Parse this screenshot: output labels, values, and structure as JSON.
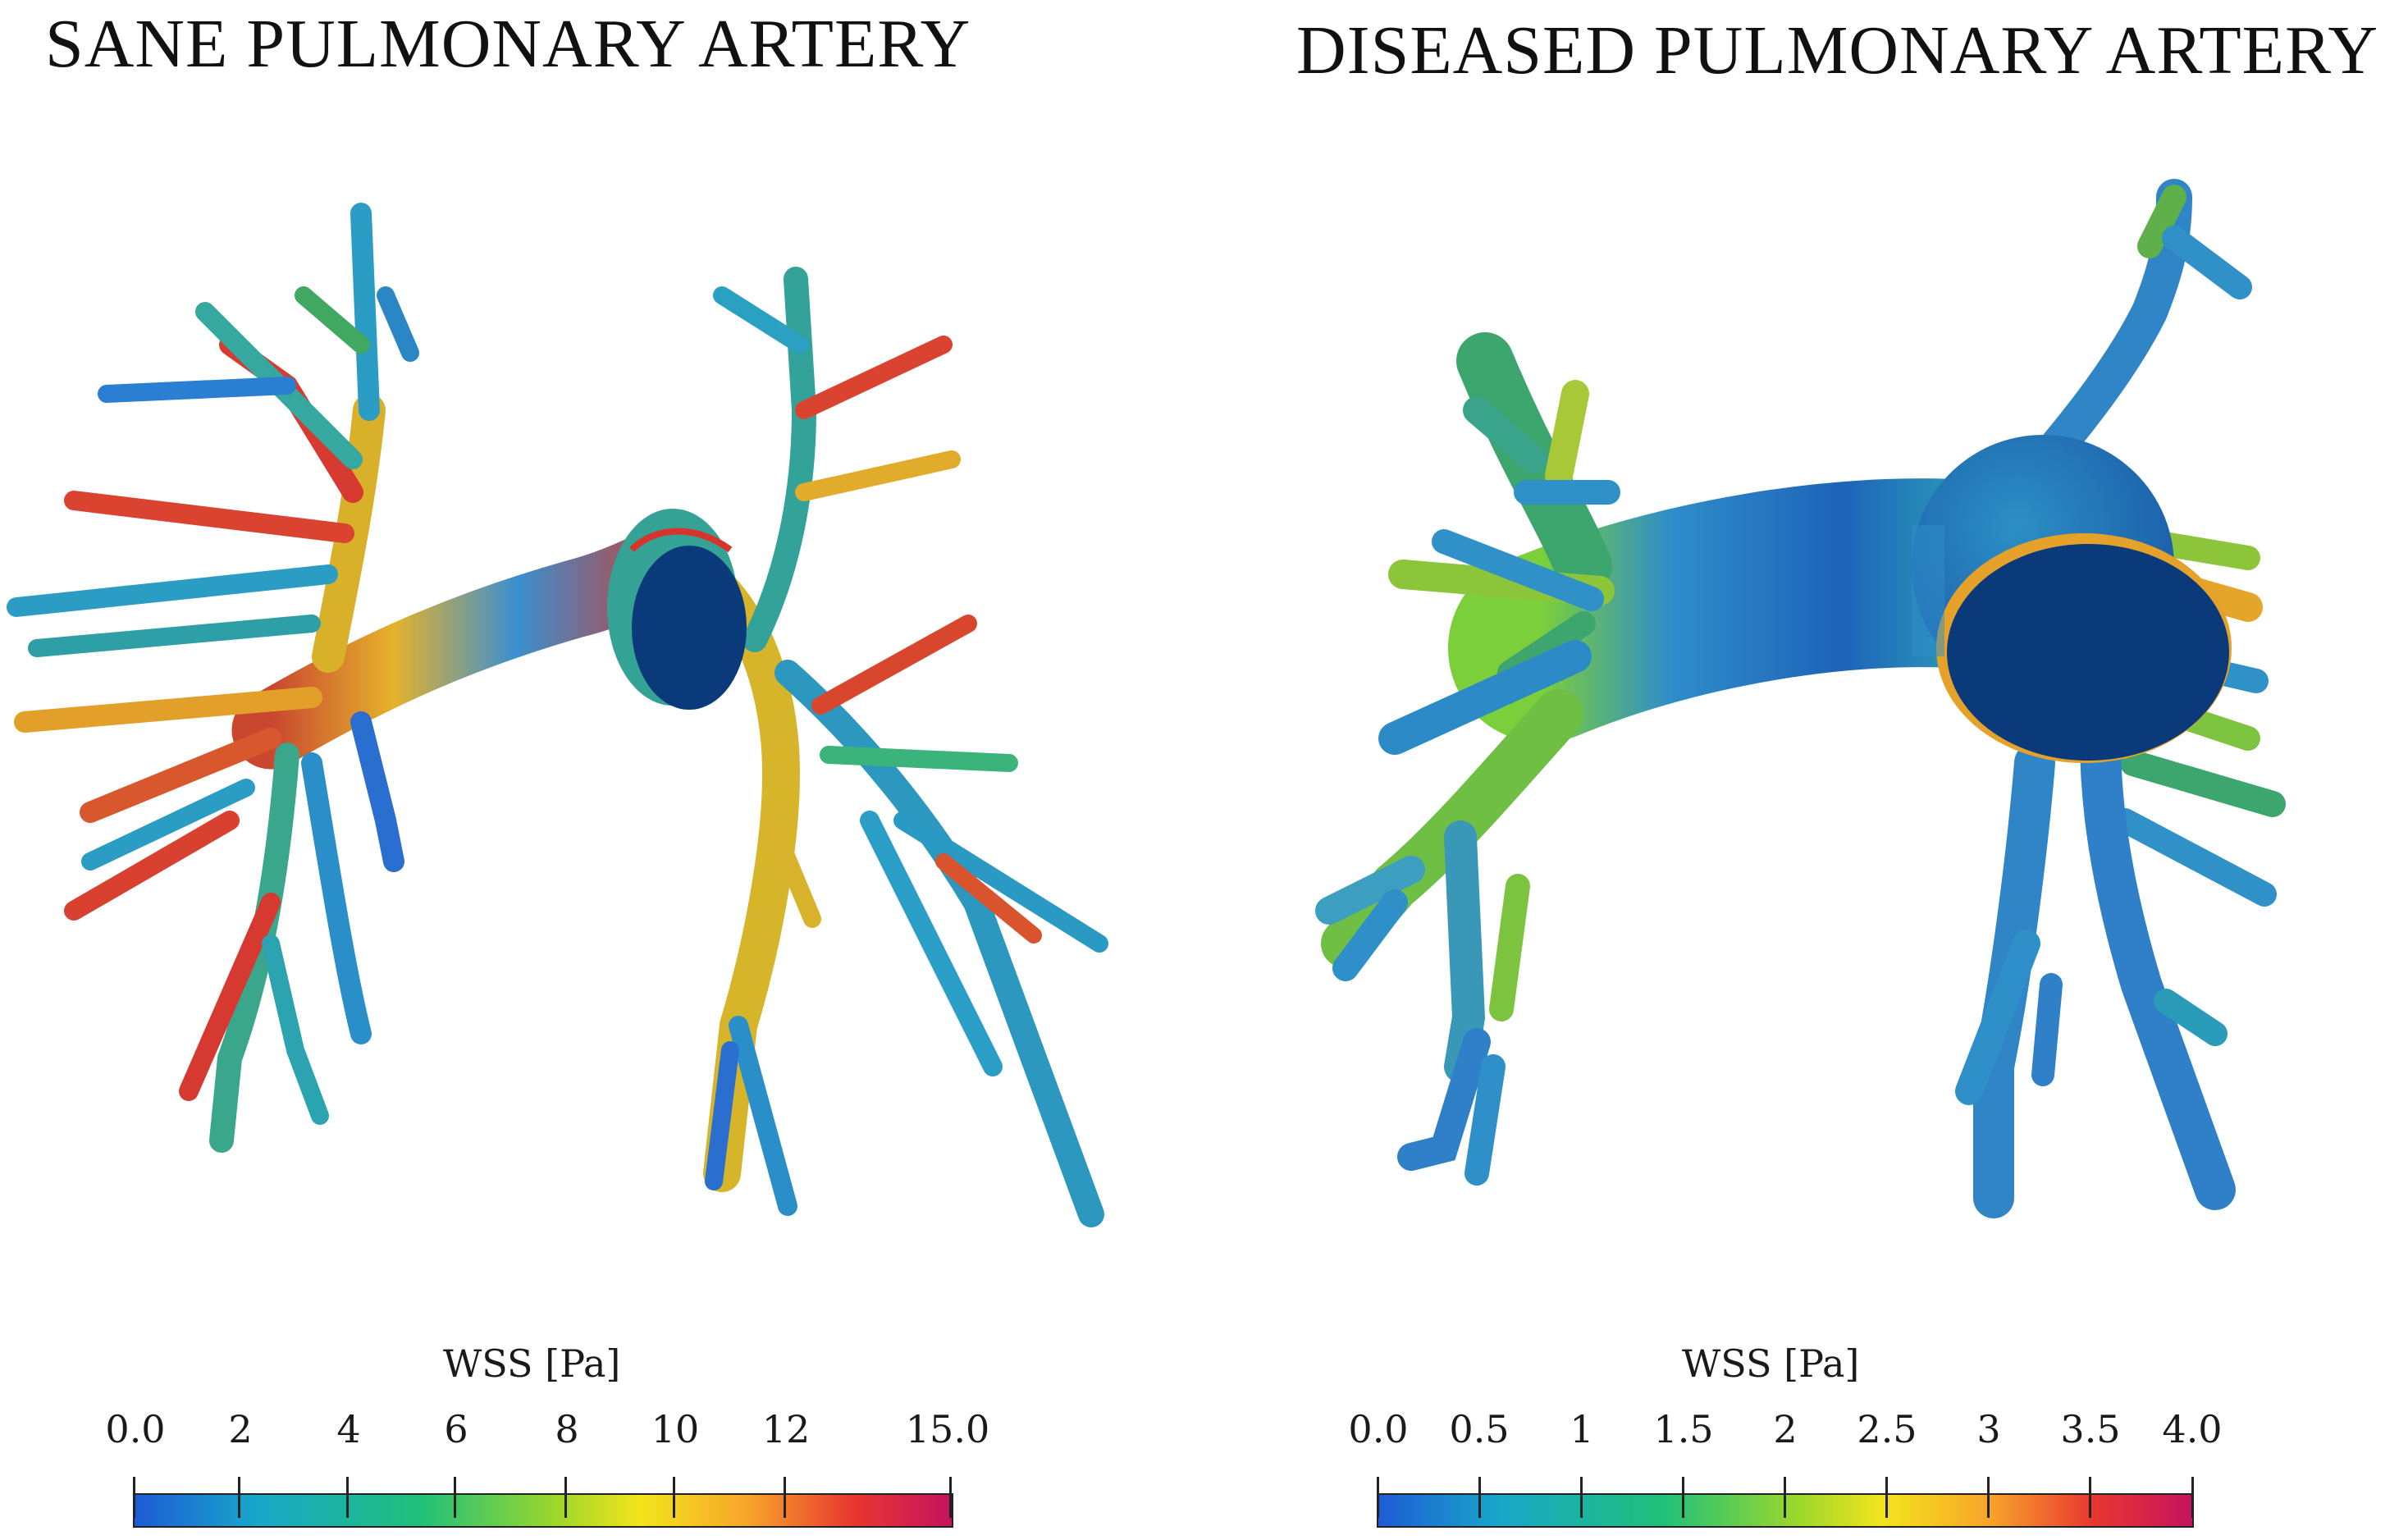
{
  "panels": {
    "left": {
      "title": "SANE PULMONARY ARTERY",
      "colorbar": {
        "title": "WSS [Pa]",
        "ticks": [
          "0.0",
          "2",
          "4",
          "6",
          "8",
          "10",
          "12",
          "15.0"
        ],
        "tick_values": [
          0,
          2,
          4,
          6,
          8,
          10,
          12,
          15
        ],
        "range": [
          0,
          15
        ],
        "colormap": [
          "#1e5bd6",
          "#18a7c9",
          "#20c07a",
          "#9fd82a",
          "#f3e41c",
          "#f7a52a",
          "#e8362f",
          "#c4145e"
        ]
      }
    },
    "right": {
      "title": "DISEASED PULMONARY ARTERY",
      "colorbar": {
        "title": "WSS [Pa]",
        "ticks": [
          "0.0",
          "0.5",
          "1",
          "1.5",
          "2",
          "2.5",
          "3",
          "3.5",
          "4.0"
        ],
        "tick_values": [
          0,
          0.5,
          1,
          1.5,
          2,
          2.5,
          3,
          3.5,
          4
        ],
        "range": [
          0,
          4
        ],
        "colormap": [
          "#1e5bd6",
          "#18a7c9",
          "#20c07a",
          "#9fd82a",
          "#f3e41c",
          "#f7a52a",
          "#e8362f",
          "#c4145e"
        ]
      }
    }
  },
  "colors": {
    "low": "#1e5bd6",
    "mid": "#20c07a",
    "high": "#c4145e",
    "outlet_cap": "#0b3a7a"
  }
}
